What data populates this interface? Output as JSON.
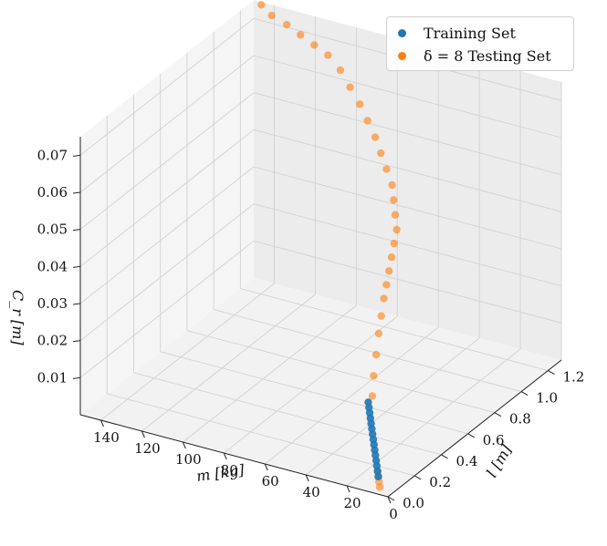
{
  "chart_data": {
    "type": "scatter",
    "projection": "3d",
    "grid": true,
    "legend_placement": "top-right",
    "xlabel": "m [kg]",
    "ylabel": "l [m]",
    "zlabel": "C_r [m]",
    "xlim": [
      0,
      150
    ],
    "ylim": [
      0,
      1.3
    ],
    "zlim": [
      0,
      0.075
    ],
    "x_ticks": [
      "0",
      "20",
      "40",
      "60",
      "80",
      "100",
      "120",
      "140"
    ],
    "y_ticks": [
      "0.0",
      "0.2",
      "0.4",
      "0.6",
      "0.8",
      "1.0",
      "1.2"
    ],
    "z_ticks": [
      "0.01",
      "0.02",
      "0.03",
      "0.04",
      "0.05",
      "0.06",
      "0.07"
    ],
    "series": [
      {
        "name": "Training Set",
        "color": "#1f77b4",
        "points": [
          [
            6,
            0.02,
            0.004
          ],
          [
            7,
            0.03,
            0.005
          ],
          [
            8,
            0.04,
            0.006
          ],
          [
            9,
            0.05,
            0.007
          ],
          [
            10,
            0.06,
            0.008
          ],
          [
            11,
            0.07,
            0.009
          ],
          [
            12,
            0.08,
            0.01
          ],
          [
            13,
            0.09,
            0.011
          ],
          [
            14,
            0.1,
            0.012
          ],
          [
            15,
            0.11,
            0.013
          ],
          [
            16,
            0.12,
            0.014
          ],
          [
            17,
            0.13,
            0.015
          ],
          [
            18,
            0.14,
            0.016
          ],
          [
            19,
            0.15,
            0.017
          ],
          [
            20,
            0.16,
            0.018
          ]
        ]
      },
      {
        "name": "δ = 8 Testing Set",
        "color": "#ff7f0e",
        "points": [
          [
            4,
            0.0,
            0.002
          ],
          [
            5,
            0.01,
            0.003
          ],
          [
            6,
            0.02,
            0.004
          ],
          [
            7,
            0.03,
            0.005
          ],
          [
            18,
            0.16,
            0.02
          ],
          [
            20,
            0.2,
            0.024
          ],
          [
            22,
            0.25,
            0.028
          ],
          [
            24,
            0.3,
            0.032
          ],
          [
            26,
            0.35,
            0.035
          ],
          [
            28,
            0.4,
            0.038
          ],
          [
            30,
            0.45,
            0.04
          ],
          [
            32,
            0.5,
            0.042
          ],
          [
            34,
            0.55,
            0.044
          ],
          [
            36,
            0.6,
            0.046
          ],
          [
            38,
            0.65,
            0.048
          ],
          [
            42,
            0.7,
            0.05
          ],
          [
            46,
            0.75,
            0.052
          ],
          [
            50,
            0.8,
            0.054
          ],
          [
            56,
            0.85,
            0.056
          ],
          [
            62,
            0.9,
            0.058
          ],
          [
            68,
            0.95,
            0.06
          ],
          [
            75,
            1.0,
            0.062
          ],
          [
            82,
            1.05,
            0.064
          ],
          [
            90,
            1.1,
            0.066
          ],
          [
            98,
            1.15,
            0.068
          ],
          [
            106,
            1.18,
            0.07
          ],
          [
            114,
            1.2,
            0.071
          ],
          [
            122,
            1.22,
            0.072
          ],
          [
            130,
            1.24,
            0.073
          ],
          [
            138,
            1.25,
            0.074
          ],
          [
            145,
            1.28,
            0.075
          ]
        ]
      }
    ]
  }
}
